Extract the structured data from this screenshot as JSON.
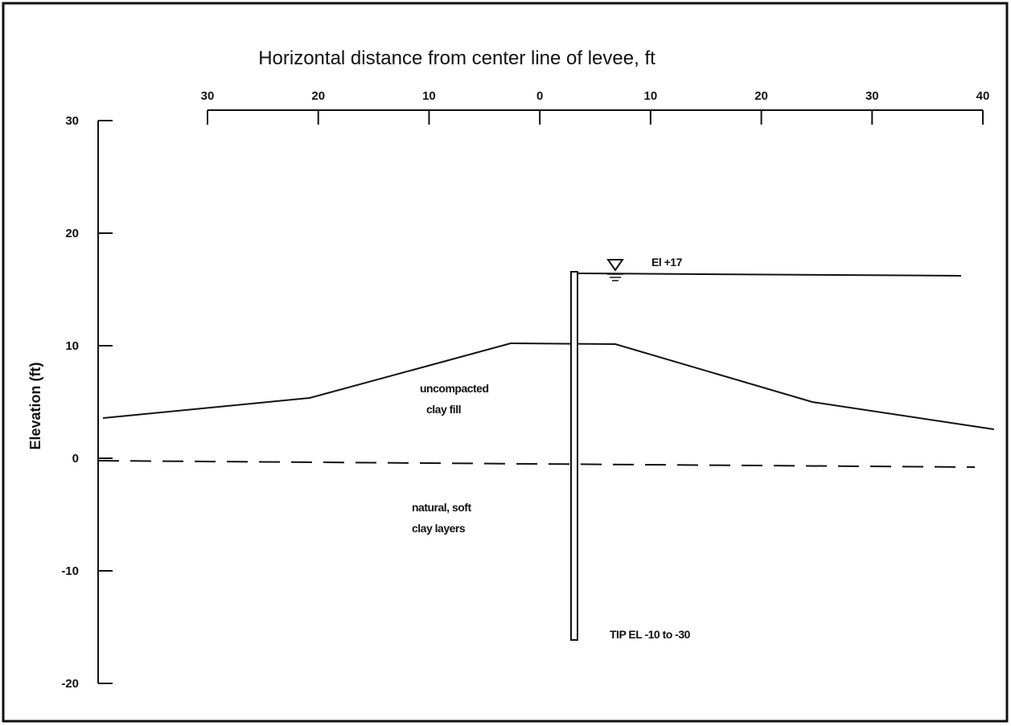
{
  "title": "Horizontal distance from center line of levee, ft",
  "y_axis_label": "Elevation (ft)",
  "top_ticks": [
    "30",
    "20",
    "10",
    "0",
    "10",
    "20",
    "30",
    "40"
  ],
  "left_ticks": [
    "30",
    "20",
    "10",
    "0",
    "-10",
    "-20"
  ],
  "labels": {
    "water_level": "El +17",
    "fill_1": "uncompacted",
    "fill_2": "clay fill",
    "natural_1": "natural, soft",
    "natural_2": "clay layers",
    "tip": "TIP EL -10 to -30"
  }
}
